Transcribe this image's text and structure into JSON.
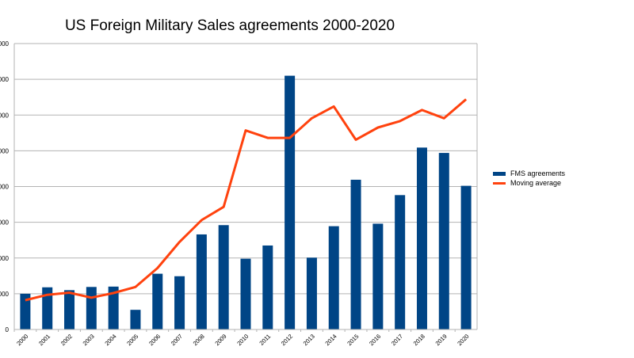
{
  "chart_data": {
    "type": "bar",
    "title": "US Foreign Military Sales agreements 2000-2020",
    "categories": [
      "2000",
      "2001",
      "2002",
      "2003",
      "2004",
      "2005",
      "2006",
      "2007",
      "2008",
      "2009",
      "2010",
      "2011",
      "2012",
      "2013",
      "2014",
      "2015",
      "2016",
      "2017",
      "2018",
      "2019",
      "2020"
    ],
    "series": [
      {
        "name": "FMS agreements",
        "kind": "bar",
        "color": "#004586",
        "values": [
          10.0,
          11.8,
          11.0,
          11.9,
          12.0,
          5.5,
          15.6,
          14.9,
          26.6,
          29.2,
          19.8,
          23.5,
          71.0,
          20.1,
          28.9,
          41.9,
          29.6,
          37.6,
          50.9,
          49.4,
          40.2
        ]
      },
      {
        "name": "Moving average",
        "kind": "line",
        "color": "#ff420e",
        "values": [
          8.2,
          9.7,
          10.3,
          8.9,
          10.2,
          11.9,
          17.2,
          24.5,
          30.6,
          34.3,
          55.7,
          53.6,
          53.6,
          59.1,
          62.4,
          53.1,
          56.5,
          58.3,
          61.4,
          59.1,
          64.4
        ]
      }
    ],
    "ylim": [
      0,
      80
    ],
    "yticks": [
      0,
      10,
      20,
      30,
      40,
      50,
      60,
      70,
      80
    ],
    "ytick_labels": [
      "0",
      "000",
      "000",
      "000",
      "000",
      "000",
      "000",
      "000",
      "000"
    ],
    "xlabel": "",
    "ylabel": "",
    "grid": true,
    "legend_position": "right"
  }
}
